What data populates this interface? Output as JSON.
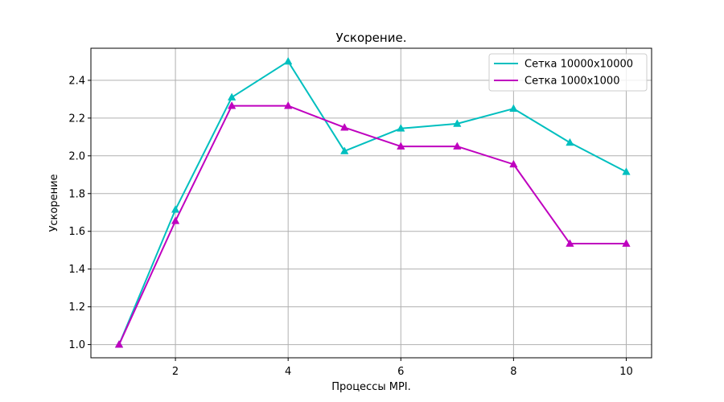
{
  "chart_data": {
    "type": "line",
    "title": "Ускорение.",
    "xlabel": "Процессы MPI.",
    "ylabel": "Ускорение",
    "x": [
      1,
      2,
      3,
      4,
      5,
      6,
      7,
      8,
      9,
      10
    ],
    "xlim": [
      0.5,
      10.45
    ],
    "ylim": [
      0.93,
      2.57
    ],
    "xticks": [
      2,
      4,
      6,
      8,
      10
    ],
    "xtick_labels": [
      "2",
      "4",
      "6",
      "8",
      "10"
    ],
    "yticks": [
      1.0,
      1.2,
      1.4,
      1.6,
      1.8,
      2.0,
      2.2,
      2.4
    ],
    "ytick_labels": [
      "1.0",
      "1.2",
      "1.4",
      "1.6",
      "1.8",
      "2.0",
      "2.2",
      "2.4"
    ],
    "grid": true,
    "legend_position": "top-right",
    "marker": "triangle",
    "series": [
      {
        "name": "Сетка 10000x10000",
        "color": "#00bfbf",
        "values": [
          1.0,
          1.715,
          2.31,
          2.5,
          2.025,
          2.145,
          2.17,
          2.25,
          2.07,
          1.915
        ]
      },
      {
        "name": "Сетка 1000x1000",
        "color": "#bf00bf",
        "values": [
          1.0,
          1.655,
          2.265,
          2.265,
          2.15,
          2.05,
          2.05,
          1.955,
          1.535,
          1.535
        ]
      }
    ]
  }
}
